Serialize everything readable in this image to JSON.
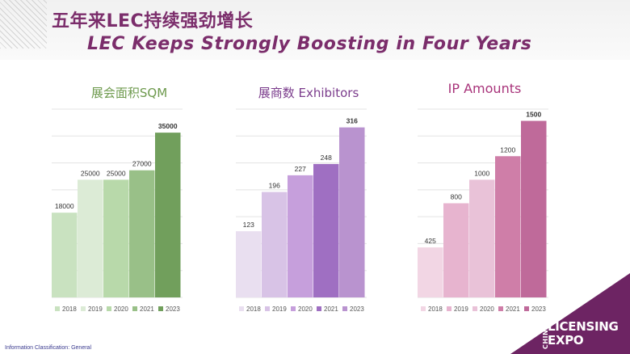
{
  "header": {
    "title_cn": "五年来LEC持续强劲增长",
    "title_en": "LEC Keeps Strongly Boosting in Four Years"
  },
  "colors": {
    "title": "#7b2d6b",
    "green_title": "#6e9a4e",
    "purple_title": "#7b3c8c",
    "pink_title": "#a8337a",
    "logo": "#6d2463"
  },
  "chart_data": [
    {
      "type": "bar",
      "title": "展会面积SQM",
      "categories": [
        "2018",
        "2019",
        "2020",
        "2021",
        "2023"
      ],
      "values": [
        18000,
        25000,
        25000,
        27000,
        35000
      ],
      "labels": [
        "18000",
        "25000",
        "25000",
        "27000",
        "35000"
      ],
      "ylim": [
        0,
        40000
      ],
      "colors": [
        "#c9e2c0",
        "#dcebd6",
        "#b8d9aa",
        "#99c088",
        "#719f5c"
      ],
      "grid": true,
      "legend": "bottom"
    },
    {
      "type": "bar",
      "title": "展商数 Exhibitors",
      "categories": [
        "2018",
        "2019",
        "2020",
        "2021",
        "2023"
      ],
      "values": [
        123,
        196,
        227,
        248,
        316
      ],
      "labels": [
        "123",
        "196",
        "227",
        "248",
        "316"
      ],
      "ylim": [
        0,
        350
      ],
      "colors": [
        "#e9dff0",
        "#d8c3e6",
        "#c69fdc",
        "#9f6fc2",
        "#b993cf"
      ],
      "grid": true,
      "legend": "bottom"
    },
    {
      "type": "bar",
      "title": "IP Amounts",
      "categories": [
        "2018",
        "2019",
        "2020",
        "2021",
        "2023"
      ],
      "values": [
        425,
        800,
        1000,
        1200,
        1500
      ],
      "labels": [
        "425",
        "800",
        "1000",
        "1200",
        "1500"
      ],
      "ylim": [
        0,
        1600
      ],
      "colors": [
        "#f2d6e4",
        "#e7b4cf",
        "#e9c2d8",
        "#cf7ea8",
        "#bf6a9a"
      ],
      "grid": true,
      "legend": "bottom"
    }
  ],
  "footer": {
    "classification": "Information Classification: General"
  },
  "logo": {
    "china": "CHINA",
    "line1": "LICENSING",
    "line2": "EXPO"
  }
}
